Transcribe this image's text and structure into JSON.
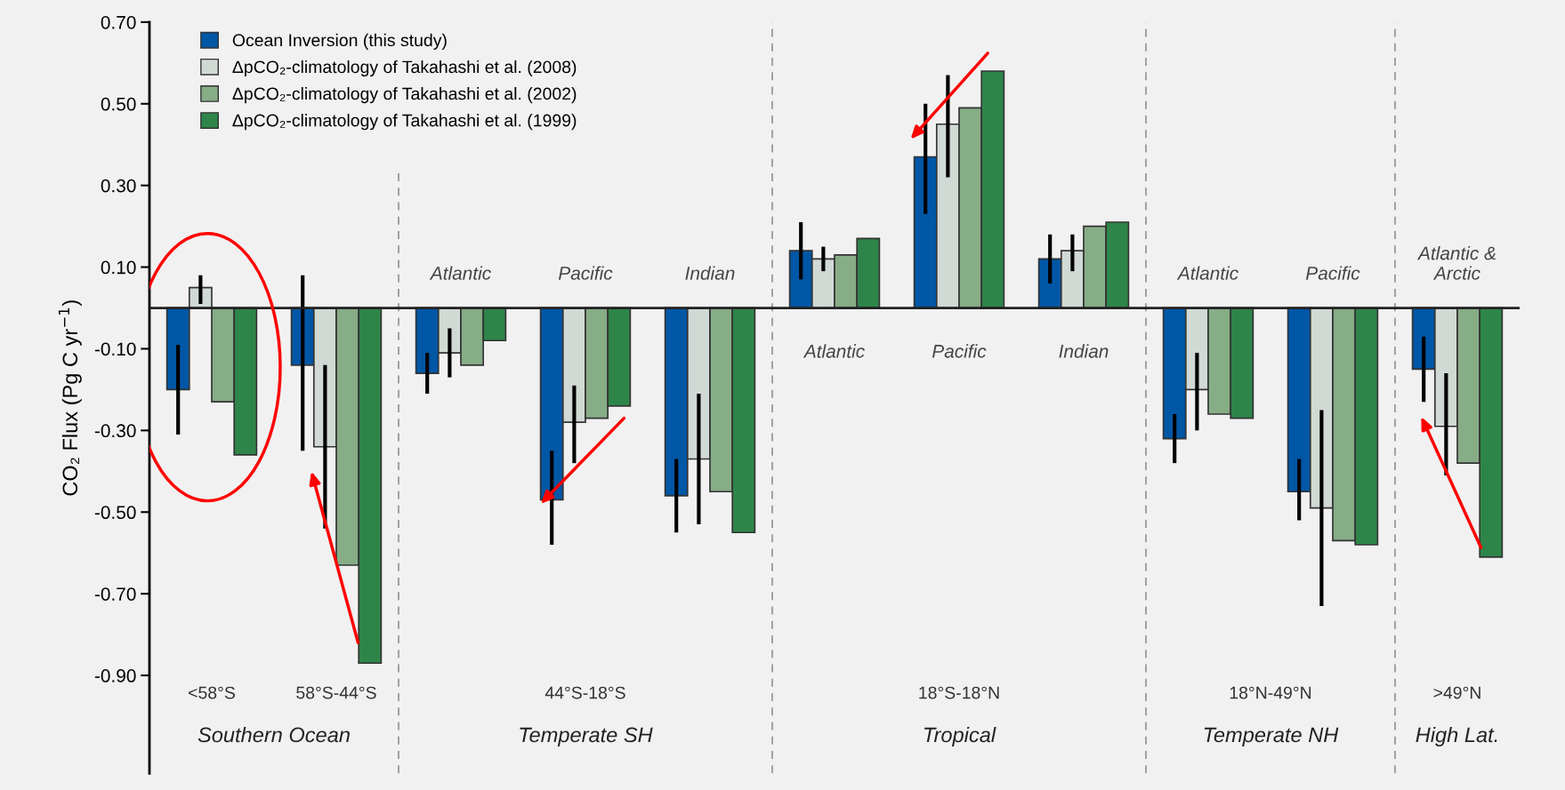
{
  "chart_data": {
    "type": "bar",
    "ylabel": "CO₂ Flux (Pg C yr$^{−1}$)",
    "categories": [
      "<58°S",
      "58°S-44°S",
      "Atlantic",
      "Pacific",
      "Indian",
      "Atlantic",
      "Pacific",
      "Indian",
      "Atlantic",
      "Pacific",
      "Atlantic &\nArctic"
    ],
    "series": [
      {
        "name": "Ocean Inversion (this study)",
        "color": "#0057a6",
        "values": [
          -0.2,
          -0.14,
          -0.16,
          -0.47,
          -0.46,
          0.14,
          0.37,
          0.12,
          -0.32,
          -0.45,
          -0.15
        ],
        "errors": [
          [
            -0.31,
            -0.09
          ],
          [
            -0.35,
            0.08
          ],
          [
            -0.21,
            -0.11
          ],
          [
            -0.58,
            -0.35
          ],
          [
            -0.55,
            -0.37
          ],
          [
            0.07,
            0.21
          ],
          [
            0.23,
            0.5
          ],
          [
            0.06,
            0.18
          ],
          [
            -0.38,
            -0.26
          ],
          [
            -0.52,
            -0.37
          ],
          [
            -0.23,
            -0.07
          ]
        ]
      },
      {
        "name": "ΔpCO₂-climatology of Takahashi et al. (2008)",
        "color": "#d1d9d4",
        "values": [
          0.05,
          -0.34,
          -0.11,
          -0.28,
          -0.37,
          0.12,
          0.45,
          0.14,
          -0.2,
          -0.49,
          -0.29
        ],
        "errors": [
          [
            0.01,
            0.08
          ],
          [
            -0.54,
            -0.14
          ],
          [
            -0.17,
            -0.05
          ],
          [
            -0.38,
            -0.19
          ],
          [
            -0.53,
            -0.21
          ],
          [
            0.09,
            0.15
          ],
          [
            0.32,
            0.57
          ],
          [
            0.09,
            0.18
          ],
          [
            -0.3,
            -0.11
          ],
          [
            -0.73,
            -0.25
          ],
          [
            -0.41,
            -0.16
          ]
        ]
      },
      {
        "name": "ΔpCO₂-climatology of Takahashi et al. (2002)",
        "color": "#87ad87",
        "values": [
          -0.23,
          -0.63,
          -0.14,
          -0.27,
          -0.45,
          0.13,
          0.49,
          0.2,
          -0.26,
          -0.57,
          -0.38
        ]
      },
      {
        "name": "ΔpCO₂-climatology of Takahashi et al. (1999)",
        "color": "#2e8549",
        "values": [
          -0.36,
          -0.87,
          -0.08,
          -0.24,
          -0.55,
          0.17,
          0.58,
          0.21,
          -0.27,
          -0.58,
          -0.61
        ]
      }
    ],
    "ylim": [
      -1.14,
      0.7
    ],
    "yticks": [
      {
        "value": 0.7,
        "label": "0.70"
      },
      {
        "value": 0.5,
        "label": "0.50"
      },
      {
        "value": 0.3,
        "label": "0.30"
      },
      {
        "value": 0.1,
        "label": "0.10"
      },
      {
        "value": -0.1,
        "label": "-0.10"
      },
      {
        "value": -0.3,
        "label": "-0.30"
      },
      {
        "value": -0.5,
        "label": "-0.50"
      },
      {
        "value": -0.7,
        "label": "-0.70"
      },
      {
        "value": -0.9,
        "label": "-0.90"
      }
    ],
    "annotations": [
      "44°S-18°S",
      "18°S-18°N",
      "18°N-49°N",
      ">49°N",
      "Southern Ocean",
      "Temperate SH",
      "Tropical",
      "Temperate NH",
      "High Lat."
    ],
    "legend": "top left",
    "grid": false
  }
}
